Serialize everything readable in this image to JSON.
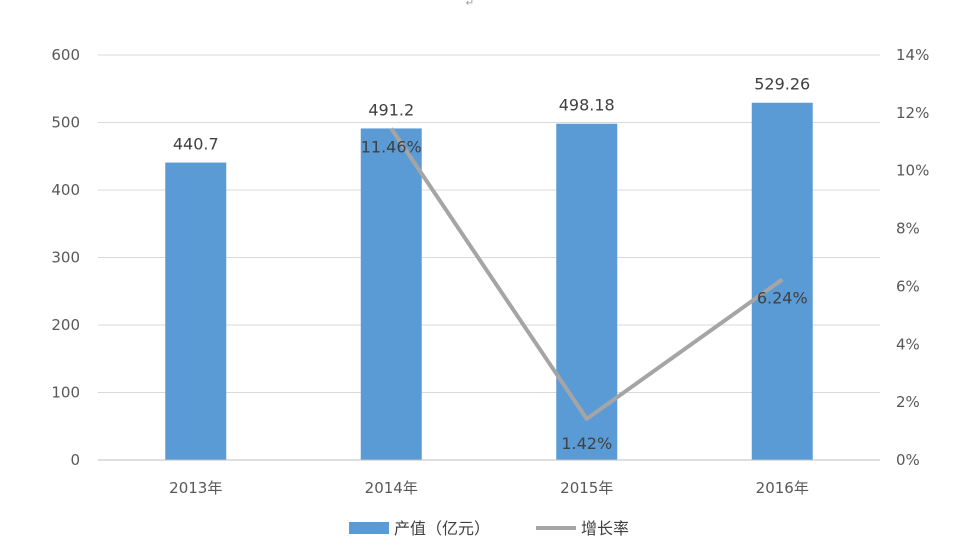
{
  "chart_data": {
    "type": "bar",
    "categories": [
      "2013年",
      "2014年",
      "2015年",
      "2016年"
    ],
    "series": [
      {
        "name": "产值（亿元）",
        "type": "bar",
        "axis": "left",
        "color": "#5b9bd5",
        "values": [
          440.7,
          491.2,
          498.18,
          529.26
        ],
        "labels": [
          "440.7",
          "491.2",
          "498.18",
          "529.26"
        ]
      },
      {
        "name": "增长率",
        "type": "line",
        "axis": "right",
        "color": "#a5a5a5",
        "values": [
          null,
          11.46,
          1.42,
          6.24
        ],
        "labels": [
          "",
          "11.46%",
          "1.42%",
          "6.24%"
        ]
      }
    ],
    "y_left": {
      "min": 0,
      "max": 600,
      "ticks": [
        "0",
        "100",
        "200",
        "300",
        "400",
        "500",
        "600"
      ]
    },
    "y_right": {
      "min": 0,
      "max": 14,
      "ticks": [
        "0%",
        "2%",
        "4%",
        "6%",
        "8%",
        "10%",
        "12%",
        "14%"
      ]
    },
    "grid": true,
    "legend": "bottom",
    "stray_mark": "↵"
  }
}
